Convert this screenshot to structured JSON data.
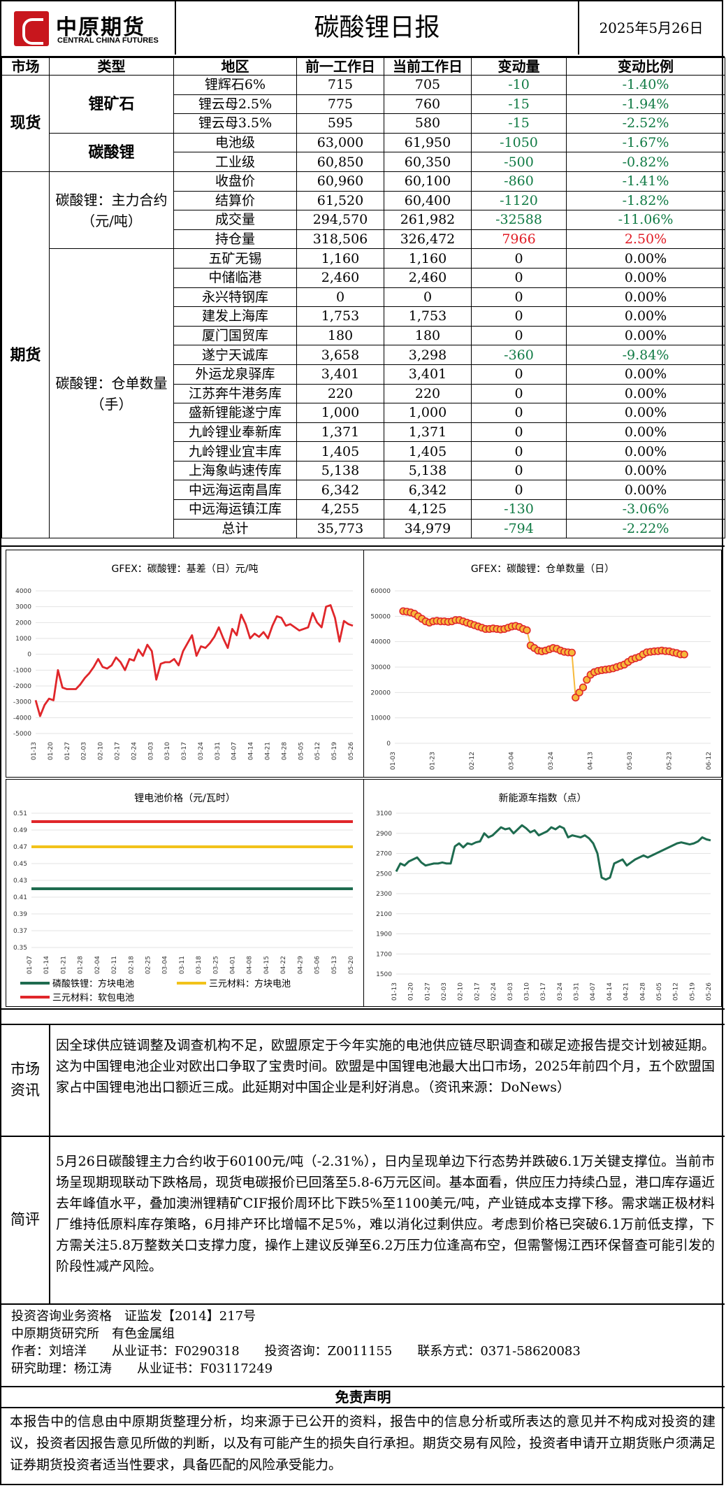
{
  "header": {
    "logo_cn": "中原期货",
    "logo_en": "CENTRAL CHINA FUTURES",
    "title": "碳酸锂日报",
    "date": "2025年5月26日"
  },
  "table": {
    "headers": [
      "市场",
      "类型",
      "地区",
      "前一工作日",
      "当前工作日",
      "变动量",
      "变动比例"
    ],
    "spot_label": "现货",
    "futures_label": "期货",
    "ore_label": "锂矿石",
    "carb_label": "碳酸锂",
    "main_contract_label": "碳酸锂：主力合约（元/吨）",
    "warehouse_label": "碳酸锂：仓单数量（手）",
    "ore_rows": [
      {
        "region": "锂辉石6%",
        "prev": "715",
        "curr": "705",
        "chg": "-10",
        "pct": "-1.40%",
        "dir": "neg"
      },
      {
        "region": "锂云母2.5%",
        "prev": "775",
        "curr": "760",
        "chg": "-15",
        "pct": "-1.94%",
        "dir": "neg"
      },
      {
        "region": "锂云母3.5%",
        "prev": "595",
        "curr": "580",
        "chg": "-15",
        "pct": "-2.52%",
        "dir": "neg"
      }
    ],
    "carb_rows": [
      {
        "region": "电池级",
        "prev": "63,000",
        "curr": "61,950",
        "chg": "-1050",
        "pct": "-1.67%",
        "dir": "neg"
      },
      {
        "region": "工业级",
        "prev": "60,850",
        "curr": "60,350",
        "chg": "-500",
        "pct": "-0.82%",
        "dir": "neg"
      }
    ],
    "main_rows": [
      {
        "region": "收盘价",
        "prev": "60,960",
        "curr": "60,100",
        "chg": "-860",
        "pct": "-1.41%",
        "dir": "neg"
      },
      {
        "region": "结算价",
        "prev": "61,520",
        "curr": "60,400",
        "chg": "-1120",
        "pct": "-1.82%",
        "dir": "neg"
      },
      {
        "region": "成交量",
        "prev": "294,570",
        "curr": "261,982",
        "chg": "-32588",
        "pct": "-11.06%",
        "dir": "neg"
      },
      {
        "region": "持仓量",
        "prev": "318,506",
        "curr": "326,472",
        "chg": "7966",
        "pct": "2.50%",
        "dir": "pos"
      }
    ],
    "wh_rows": [
      {
        "region": "五矿无锡",
        "prev": "1,160",
        "curr": "1,160",
        "chg": "0",
        "pct": "0.00%",
        "dir": ""
      },
      {
        "region": "中储临港",
        "prev": "2,460",
        "curr": "2,460",
        "chg": "0",
        "pct": "0.00%",
        "dir": ""
      },
      {
        "region": "永兴特钢库",
        "prev": "0",
        "curr": "0",
        "chg": "0",
        "pct": "0.00%",
        "dir": ""
      },
      {
        "region": "建发上海库",
        "prev": "1,753",
        "curr": "1,753",
        "chg": "0",
        "pct": "0.00%",
        "dir": ""
      },
      {
        "region": "厦门国贸库",
        "prev": "180",
        "curr": "180",
        "chg": "0",
        "pct": "0.00%",
        "dir": ""
      },
      {
        "region": "遂宁天诚库",
        "prev": "3,658",
        "curr": "3,298",
        "chg": "-360",
        "pct": "-9.84%",
        "dir": "neg"
      },
      {
        "region": "外运龙泉驿库",
        "prev": "3,401",
        "curr": "3,401",
        "chg": "0",
        "pct": "0.00%",
        "dir": ""
      },
      {
        "region": "江苏奔牛港务库",
        "prev": "220",
        "curr": "220",
        "chg": "0",
        "pct": "0.00%",
        "dir": ""
      },
      {
        "region": "盛新锂能遂宁库",
        "prev": "1,000",
        "curr": "1,000",
        "chg": "0",
        "pct": "0.00%",
        "dir": ""
      },
      {
        "region": "九岭锂业奉新库",
        "prev": "1,371",
        "curr": "1,371",
        "chg": "0",
        "pct": "0.00%",
        "dir": ""
      },
      {
        "region": "九岭锂业宜丰库",
        "prev": "1,405",
        "curr": "1,405",
        "chg": "0",
        "pct": "0.00%",
        "dir": ""
      },
      {
        "region": "上海象屿速传库",
        "prev": "5,138",
        "curr": "5,138",
        "chg": "0",
        "pct": "0.00%",
        "dir": ""
      },
      {
        "region": "中远海运南昌库",
        "prev": "6,342",
        "curr": "6,342",
        "chg": "0",
        "pct": "0.00%",
        "dir": ""
      },
      {
        "region": "中远海运镇江库",
        "prev": "4,255",
        "curr": "4,125",
        "chg": "-130",
        "pct": "-3.06%",
        "dir": "neg"
      },
      {
        "region": "总计",
        "prev": "35,773",
        "curr": "34,979",
        "chg": "-794",
        "pct": "-2.22%",
        "dir": "neg"
      }
    ]
  },
  "chart_data": [
    {
      "type": "line",
      "title": "GFEX：碳酸锂：基差（日）元/吨",
      "ylim": [
        -5000,
        4000
      ],
      "yticks": [
        4000,
        3000,
        2000,
        1000,
        0,
        -1000,
        -2000,
        -3000,
        -4000,
        -5000
      ],
      "x_labels": [
        "01-13",
        "01-20",
        "01-27",
        "02-03",
        "02-10",
        "02-17",
        "02-24",
        "03-03",
        "03-10",
        "03-17",
        "03-24",
        "03-31",
        "04-07",
        "04-14",
        "04-21",
        "04-28",
        "05-05",
        "05-12",
        "05-19",
        "05-26"
      ],
      "color": "#e0262a",
      "values": [
        -2900,
        -3900,
        -3200,
        -2800,
        -2900,
        -1000,
        -2100,
        -2200,
        -2200,
        -2200,
        -1900,
        -1500,
        -1200,
        -800,
        -300,
        -800,
        -900,
        -700,
        -200,
        -500,
        -1000,
        -300,
        -400,
        300,
        -100,
        600,
        200,
        -1600,
        -600,
        -500,
        -500,
        -300,
        -700,
        200,
        700,
        1200,
        -100,
        500,
        400,
        700,
        1100,
        1700,
        1000,
        400,
        1600,
        1200,
        2500,
        1900,
        1000,
        1300,
        1100,
        1400,
        1000,
        1800,
        2400,
        2300,
        1800,
        1900,
        1700,
        1500,
        1600,
        1700,
        2600,
        2000,
        1700,
        3000,
        3100,
        2300,
        800,
        2100,
        1900,
        1800
      ]
    },
    {
      "type": "scatter",
      "title": "GFEX：碳酸锂：仓单数量（日）",
      "ylim": [
        0,
        60000
      ],
      "yticks": [
        60000,
        50000,
        40000,
        30000,
        20000,
        10000,
        0
      ],
      "x_labels": [
        "01-03",
        "01-23",
        "02-12",
        "03-04",
        "03-24",
        "04-13",
        "05-03",
        "05-23",
        "06-12"
      ],
      "color": "#e0262a",
      "fill": "#f6b93b",
      "values": [
        52000,
        51800,
        51500,
        51000,
        50000,
        49000,
        48000,
        47500,
        48000,
        48200,
        48000,
        48000,
        47800,
        48000,
        48500,
        48500,
        48000,
        47500,
        47000,
        46500,
        46000,
        45500,
        45000,
        45000,
        45200,
        45000,
        44800,
        45000,
        45500,
        46000,
        46200,
        45800,
        45000,
        44500,
        38500,
        37500,
        36500,
        36200,
        36500,
        37000,
        37500,
        37200,
        36500,
        36000,
        35800,
        35700,
        18000,
        20000,
        22000,
        25000,
        27000,
        28000,
        28500,
        28800,
        29000,
        29200,
        29500,
        30000,
        30500,
        31000,
        32000,
        33000,
        33500,
        34000,
        35000,
        35800,
        36000,
        36200,
        36300,
        36500,
        36300,
        36200,
        35800,
        35500,
        35000,
        34979
      ]
    },
    {
      "type": "line",
      "title": "锂电池价格（元/瓦时）",
      "ylim": [
        0.35,
        0.51
      ],
      "yticks": [
        "0.51",
        "0.49",
        "0.47",
        "0.45",
        "0.43",
        "0.41",
        "0.39",
        "0.37",
        "0.35"
      ],
      "x_labels": [
        "01-07",
        "01-14",
        "01-21",
        "01-28",
        "02-04",
        "02-11",
        "02-18",
        "02-25",
        "03-04",
        "03-11",
        "03-18",
        "03-25",
        "04-01",
        "04-08",
        "04-15",
        "04-22",
        "04-29",
        "05-06",
        "05-13",
        "05-20"
      ],
      "series": [
        {
          "name": "磷酸铁锂：方块电池",
          "value": 0.42,
          "color": "#1e6b4f"
        },
        {
          "name": "三元材料：方块电池",
          "value": 0.47,
          "color": "#f2c21a"
        },
        {
          "name": "三元材料：软包电池",
          "value": 0.5,
          "color": "#e0262a"
        }
      ]
    },
    {
      "type": "line",
      "title": "新能源车指数（点）",
      "ylim": [
        1500,
        3100
      ],
      "yticks": [
        3100,
        2900,
        2700,
        2500,
        2300,
        2100,
        1900,
        1700,
        1500
      ],
      "x_labels": [
        "01-13",
        "01-20",
        "01-27",
        "02-03",
        "02-10",
        "02-17",
        "02-24",
        "03-03",
        "03-10",
        "03-17",
        "03-24",
        "03-31",
        "04-07",
        "04-14",
        "04-21",
        "04-28",
        "05-05",
        "05-12",
        "05-19",
        "05-26"
      ],
      "color": "#1e6b4f",
      "values": [
        2520,
        2600,
        2580,
        2620,
        2640,
        2660,
        2610,
        2580,
        2590,
        2600,
        2600,
        2610,
        2600,
        2600,
        2770,
        2800,
        2760,
        2800,
        2790,
        2810,
        2820,
        2900,
        2860,
        2880,
        2920,
        2960,
        2940,
        2950,
        2900,
        2940,
        2980,
        2950,
        2910,
        2930,
        2880,
        2900,
        2920,
        2960,
        2940,
        2970,
        2950,
        2860,
        2880,
        2870,
        2860,
        2880,
        2850,
        2800,
        2700,
        2460,
        2440,
        2460,
        2600,
        2620,
        2640,
        2580,
        2610,
        2640,
        2660,
        2680,
        2660,
        2680,
        2700,
        2720,
        2740,
        2760,
        2780,
        2800,
        2810,
        2800,
        2790,
        2800,
        2820,
        2860,
        2840,
        2830
      ]
    }
  ],
  "news": {
    "label": "市场资讯",
    "text": "因全球供应链调整及调查机构不足，欧盟原定于今年实施的电池供应链尽职调查和碳足迹报告提交计划被延期。这为中国锂电池企业对欧出口争取了宝贵时间。欧盟是中国锂电池最大出口市场，2025年前四个月，五个欧盟国家占中国锂电池出口额近三成。此延期对中国企业是利好消息。（资讯来源：DoNews）"
  },
  "review": {
    "label": "简评",
    "text": "5月26日碳酸锂主力合约收于60100元/吨（-2.31%），日内呈现单边下行态势并跌破6.1万关键支撑位。当前市场呈现期现联动下跌格局，现货电碳报价已回落至5.8-6万元区间。基本面看，供应压力持续凸显，港口库存逼近去年峰值水平，叠加澳洲锂精矿CIF报价周环比下跌5%至1100美元/吨，产业链成本支撑下移。需求端正极材料厂维持低原料库存策略，6月排产环比增幅不足5%，难以消化过剩供应。考虑到价格已突破6.1万前低支撑，下方需关注5.8万整数关口支撑力度，操作上建议反弹至6.2万压力位逢高布空，但需警惕江西环保督查可能引发的阶段性减产风险。"
  },
  "footer": {
    "line1": "投资咨询业务资格　证监发【2014】217号",
    "line2": "中原期货研究所　有色金属组",
    "line3": "作者：刘培洋　　从业证书：F0290318　　投资咨询：Z0011155　　联系方式：0371-58620083",
    "line4": "研究助理：杨江涛　　从业证书：F03117249"
  },
  "disclaimer": {
    "title": "免责声明",
    "text": "本报告中的信息由中原期货整理分析，均来源于已公开的资料，报告中的信息分析或所表达的意见并不构成对投资的建议，投资者因报告意见所做的判断，以及有可能产生的损失自行承担。期货交易有风险，投资者申请开立期货账户须满足证券期货投资者适当性要求，具备匹配的风险承受能力。"
  }
}
